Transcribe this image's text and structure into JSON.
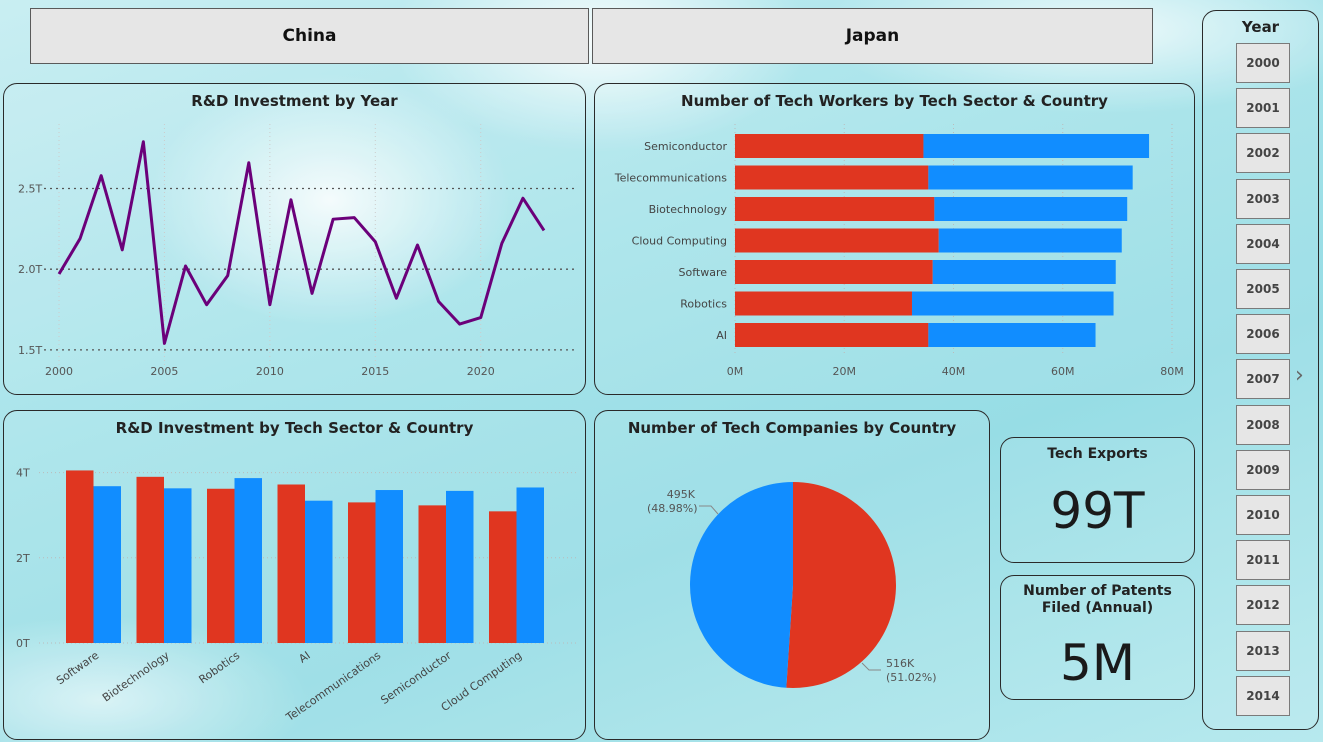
{
  "country_buttons": [
    {
      "label": "China"
    },
    {
      "label": "Japan"
    }
  ],
  "colors": {
    "china": "#e03620",
    "japan": "#118dff",
    "line": "#6b007a",
    "slicer_bg": "#e6e6e6"
  },
  "kpis": {
    "tech_exports": {
      "title": "Tech Exports",
      "value": "99T"
    },
    "patents": {
      "title": "Number of Patents Filed (Annual)",
      "value": "5M"
    }
  },
  "year_slicer": {
    "title": "Year",
    "items": [
      "2000",
      "2001",
      "2002",
      "2003",
      "2004",
      "2005",
      "2006",
      "2007",
      "2008",
      "2009",
      "2010",
      "2011",
      "2012",
      "2013",
      "2014"
    ],
    "next_arrow": "›"
  },
  "chart_data": [
    {
      "id": "rd_by_year",
      "type": "line",
      "title": "R&D Investment by Year",
      "xlabel": "",
      "ylabel": "",
      "x": [
        2000,
        2001,
        2002,
        2003,
        2004,
        2005,
        2006,
        2007,
        2008,
        2009,
        2010,
        2011,
        2012,
        2013,
        2014,
        2015,
        2016,
        2017,
        2018,
        2019,
        2020,
        2021,
        2022,
        2023
      ],
      "values": [
        1.97,
        2.19,
        2.58,
        2.12,
        2.79,
        1.54,
        2.02,
        1.78,
        1.96,
        2.66,
        1.78,
        2.43,
        1.85,
        2.31,
        2.32,
        2.17,
        1.82,
        2.15,
        1.8,
        1.66,
        1.7,
        2.16,
        2.44,
        2.24
      ],
      "unit": "T",
      "yticks": [
        "1.5T",
        "2.0T",
        "2.5T"
      ],
      "xticks": [
        "2000",
        "2005",
        "2010",
        "2015",
        "2020"
      ],
      "ylim": [
        1.4,
        2.9
      ],
      "grid": true
    },
    {
      "id": "workers_by_sector",
      "type": "bar",
      "orientation": "horizontal",
      "stacked": true,
      "title": "Number of Tech Workers by Tech Sector & Country",
      "categories": [
        "Semiconductor",
        "Telecommunications",
        "Biotechnology",
        "Cloud Computing",
        "Software",
        "Robotics",
        "AI"
      ],
      "series": [
        {
          "name": "China",
          "values": [
            34.5,
            35.4,
            36.5,
            37.3,
            36.2,
            32.4,
            35.4
          ]
        },
        {
          "name": "Japan",
          "values": [
            41.3,
            37.4,
            35.3,
            33.5,
            33.5,
            36.9,
            30.6
          ]
        }
      ],
      "unit": "M",
      "xticks": [
        "0M",
        "20M",
        "40M",
        "60M",
        "80M"
      ],
      "xlim": [
        0,
        80
      ],
      "grid": true
    },
    {
      "id": "rd_by_sector",
      "type": "bar",
      "orientation": "vertical",
      "stacked": false,
      "title": "R&D Investment by Tech Sector & Country",
      "categories": [
        "Software",
        "Biotechnology",
        "Robotics",
        "AI",
        "Telecommunications",
        "Semiconductor",
        "Cloud Computing"
      ],
      "series": [
        {
          "name": "China",
          "values": [
            4.05,
            3.9,
            3.62,
            3.72,
            3.3,
            3.23,
            3.09
          ]
        },
        {
          "name": "Japan",
          "values": [
            3.68,
            3.63,
            3.87,
            3.34,
            3.59,
            3.57,
            3.65
          ]
        }
      ],
      "unit": "T",
      "yticks": [
        "0T",
        "2T",
        "4T"
      ],
      "ylim": [
        0,
        4.6
      ],
      "grid": true
    },
    {
      "id": "companies_by_country",
      "type": "pie",
      "title": "Number of Tech Companies by Country",
      "slices": [
        {
          "name": "China",
          "value": 516,
          "label": "516K",
          "pct": "(51.02%)"
        },
        {
          "name": "Japan",
          "value": 495,
          "label": "495K",
          "pct": "(48.98%)"
        }
      ],
      "unit": "K"
    }
  ]
}
